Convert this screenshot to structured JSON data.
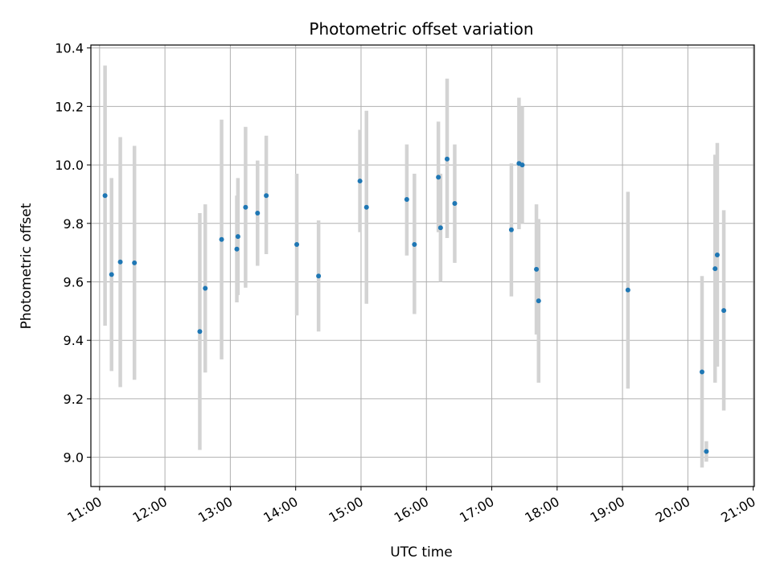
{
  "chart_data": {
    "type": "scatter",
    "title": "Photometric offset variation",
    "xlabel": "UTC time",
    "ylabel": "Photometric offset",
    "xlim": [
      "10:52",
      "21:01"
    ],
    "ylim": [
      8.9,
      10.41
    ],
    "x_ticks": [
      "11:00",
      "12:00",
      "13:00",
      "14:00",
      "15:00",
      "16:00",
      "17:00",
      "18:00",
      "19:00",
      "20:00",
      "21:00"
    ],
    "y_ticks": [
      "9.0",
      "9.2",
      "9.4",
      "9.6",
      "9.8",
      "10.0",
      "10.2",
      "10.4"
    ],
    "grid": true,
    "legend": "none",
    "colors": {
      "marker": "#1f77b4",
      "errorbar": "#d3d3d3",
      "grid": "#b0b0b0"
    },
    "points": [
      {
        "x": "11:05",
        "y": 9.895,
        "yerr_low": 9.45,
        "yerr_high": 10.34
      },
      {
        "x": "11:11",
        "y": 9.625,
        "yerr_low": 9.295,
        "yerr_high": 9.955
      },
      {
        "x": "11:19",
        "y": 9.668,
        "yerr_low": 9.24,
        "yerr_high": 10.095
      },
      {
        "x": "11:32",
        "y": 9.665,
        "yerr_low": 9.265,
        "yerr_high": 10.065
      },
      {
        "x": "12:32",
        "y": 9.43,
        "yerr_low": 9.025,
        "yerr_high": 9.835
      },
      {
        "x": "12:37",
        "y": 9.578,
        "yerr_low": 9.29,
        "yerr_high": 9.865
      },
      {
        "x": "12:52",
        "y": 9.745,
        "yerr_low": 9.335,
        "yerr_high": 10.155
      },
      {
        "x": "13:06",
        "y": 9.712,
        "yerr_low": 9.53,
        "yerr_high": 9.895
      },
      {
        "x": "13:07",
        "y": 9.755,
        "yerr_low": 9.555,
        "yerr_high": 9.955
      },
      {
        "x": "13:14",
        "y": 9.855,
        "yerr_low": 9.58,
        "yerr_high": 10.13
      },
      {
        "x": "13:25",
        "y": 9.835,
        "yerr_low": 9.655,
        "yerr_high": 10.015
      },
      {
        "x": "13:33",
        "y": 9.895,
        "yerr_low": 9.695,
        "yerr_high": 10.1
      },
      {
        "x": "14:01",
        "y": 9.728,
        "yerr_low": 9.485,
        "yerr_high": 9.97
      },
      {
        "x": "14:21",
        "y": 9.62,
        "yerr_low": 9.43,
        "yerr_high": 9.81
      },
      {
        "x": "14:59",
        "y": 9.945,
        "yerr_low": 9.77,
        "yerr_high": 10.12
      },
      {
        "x": "15:05",
        "y": 9.855,
        "yerr_low": 9.525,
        "yerr_high": 10.185
      },
      {
        "x": "15:42",
        "y": 9.882,
        "yerr_low": 9.69,
        "yerr_high": 10.07
      },
      {
        "x": "15:49",
        "y": 9.728,
        "yerr_low": 9.49,
        "yerr_high": 9.97
      },
      {
        "x": "16:11",
        "y": 9.958,
        "yerr_low": 9.77,
        "yerr_high": 10.148
      },
      {
        "x": "16:13",
        "y": 9.785,
        "yerr_low": 9.6,
        "yerr_high": 9.97
      },
      {
        "x": "16:19",
        "y": 10.02,
        "yerr_low": 9.75,
        "yerr_high": 10.295
      },
      {
        "x": "16:26",
        "y": 9.868,
        "yerr_low": 9.665,
        "yerr_high": 10.07
      },
      {
        "x": "17:18",
        "y": 9.778,
        "yerr_low": 9.55,
        "yerr_high": 10.005
      },
      {
        "x": "17:25",
        "y": 10.005,
        "yerr_low": 9.78,
        "yerr_high": 10.23
      },
      {
        "x": "17:28",
        "y": 10.0,
        "yerr_low": 9.8,
        "yerr_high": 10.2
      },
      {
        "x": "17:41",
        "y": 9.643,
        "yerr_low": 9.42,
        "yerr_high": 9.865
      },
      {
        "x": "17:43",
        "y": 9.535,
        "yerr_low": 9.255,
        "yerr_high": 9.815
      },
      {
        "x": "19:05",
        "y": 9.572,
        "yerr_low": 9.235,
        "yerr_high": 9.908
      },
      {
        "x": "20:13",
        "y": 9.292,
        "yerr_low": 8.965,
        "yerr_high": 9.62
      },
      {
        "x": "20:17",
        "y": 9.02,
        "yerr_low": 8.985,
        "yerr_high": 9.055
      },
      {
        "x": "20:25",
        "y": 9.645,
        "yerr_low": 9.255,
        "yerr_high": 10.035
      },
      {
        "x": "20:27",
        "y": 9.692,
        "yerr_low": 9.31,
        "yerr_high": 10.075
      },
      {
        "x": "20:33",
        "y": 9.502,
        "yerr_low": 9.16,
        "yerr_high": 9.845
      }
    ]
  }
}
